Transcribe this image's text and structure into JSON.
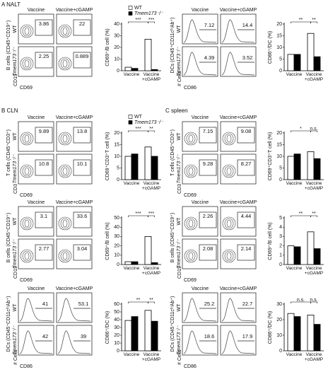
{
  "sections": [
    "A NALT",
    "B CLN",
    "C spleen"
  ],
  "panels": [
    {
      "kind": "contour",
      "columns": [
        "Vaccine",
        "Vaccine+cGAMP"
      ],
      "rows": [
        "WT",
        "Tmem173⁻/⁻"
      ],
      "ylabel": "B cells (CD45⁺CD19⁺)",
      "marker_y": "CD19",
      "marker_x": "CD69",
      "values": [
        3.86,
        22,
        2.25,
        0.889
      ]
    },
    {
      "kind": "histogram",
      "columns": [
        "Vaccine",
        "Vaccine+cGAMP"
      ],
      "rows": [
        "WT",
        "Tmem173⁻/⁻"
      ],
      "ylabel": "DCs (CD45⁺CD11cʰⁱAb⁺)",
      "marker_y": "# Cells",
      "marker_x": "CD86",
      "values": [
        7.12,
        14.4,
        4.39,
        3.52
      ]
    },
    {
      "kind": "contour",
      "columns": [
        "Vaccine",
        "Vaccine+cGAMP"
      ],
      "rows": [
        "WT",
        "Tmem173⁻/⁻"
      ],
      "ylabel": "T cells (CD45⁺CD3⁺)",
      "marker_y": "CD3",
      "marker_x": "CD69",
      "values": [
        9.89,
        13.8,
        10.8,
        10.1
      ]
    },
    {
      "kind": "contour",
      "columns": [
        "Vaccine",
        "Vaccine+cGAMP"
      ],
      "rows": [
        "WT",
        "Tmem173⁻/⁻"
      ],
      "ylabel": "T cells (CD45⁺CD3⁺)",
      "marker_y": "CD3",
      "marker_x": "CD69",
      "values": [
        7.15,
        9.08,
        9.28,
        8.27
      ]
    },
    {
      "kind": "contour",
      "columns": [
        "Vaccine",
        "Vaccine+cGAMP"
      ],
      "rows": [
        "WT",
        "Tmem173⁻/⁻"
      ],
      "ylabel": "B cells (CD45⁺CD19⁺)",
      "marker_y": "CD19",
      "marker_x": "CD69",
      "values": [
        3.1,
        33.6,
        2.77,
        3.04
      ]
    },
    {
      "kind": "contour",
      "columns": [
        "Vaccine",
        "Vaccine+cGAMP"
      ],
      "rows": [
        "WT",
        "Tmem173⁻/⁻"
      ],
      "ylabel": "B cells (CD45⁺CD19⁺)",
      "marker_y": "CD19",
      "marker_x": "CD69",
      "values": [
        2.26,
        4.44,
        2.08,
        2.14
      ]
    },
    {
      "kind": "histogram",
      "columns": [
        "Vaccine",
        "Vaccine+cGAMP"
      ],
      "rows": [
        "WT",
        "Tmem173⁻/⁻"
      ],
      "ylabel": "DCs (CD45⁺CD11cʰⁱAb⁺)",
      "marker_y": "# Cells",
      "marker_x": "CD86",
      "values": [
        41,
        53.1,
        42,
        39
      ]
    },
    {
      "kind": "histogram",
      "columns": [
        "Vaccine",
        "Vaccine+cGAMP"
      ],
      "rows": [
        "WT",
        "Tmem173⁻/⁻"
      ],
      "ylabel": "DCs (CD45⁺CD11cʰⁱAb⁺)",
      "marker_y": "# Cells",
      "marker_x": "CD86",
      "values": [
        25.2,
        22.7,
        18.6,
        17.9
      ]
    }
  ],
  "chart_data": [
    {
      "type": "bar",
      "ylabel": "CD69⁺/B cell (%)",
      "categories": [
        "Vaccine",
        "Vaccine +cGAMP"
      ],
      "ylim": [
        0,
        40
      ],
      "yticks": [
        0,
        10,
        20,
        30,
        40
      ],
      "legend": true,
      "series": [
        {
          "name": "WT",
          "color": "#ffffff",
          "values": [
            3,
            27
          ]
        },
        {
          "name": "Tmem173⁻/⁻",
          "color": "#000000",
          "values": [
            2,
            1
          ]
        }
      ],
      "annotations": [
        "***",
        "***"
      ]
    },
    {
      "type": "bar",
      "ylabel": "CD86⁺/DC (%)",
      "categories": [
        "Vaccine",
        "Vaccine +cGAMP"
      ],
      "ylim": [
        0,
        20
      ],
      "yticks": [
        0,
        5,
        10,
        15,
        20
      ],
      "legend": false,
      "series": [
        {
          "color": "#ffffff",
          "values": [
            7,
            16
          ]
        },
        {
          "color": "#000000",
          "values": [
            7,
            6
          ]
        }
      ],
      "annotations": [
        "**",
        "**"
      ]
    },
    {
      "type": "bar",
      "ylabel": "CD69⁺CD3⁺T cell (%)",
      "categories": [
        "Vaccine",
        "Vaccine +cGAMP"
      ],
      "ylim": [
        0,
        20
      ],
      "yticks": [
        0,
        5,
        10,
        15,
        20
      ],
      "legend": true,
      "series": [
        {
          "name": "WT",
          "color": "#ffffff",
          "values": [
            10,
            14
          ]
        },
        {
          "name": "Tmem173⁻/⁻",
          "color": "#000000",
          "values": [
            11,
            10
          ]
        }
      ],
      "annotations": [
        "***",
        "**"
      ]
    },
    {
      "type": "bar",
      "ylabel": "CD69⁺CD3⁺T cell (%)",
      "categories": [
        "Vaccine",
        "Vaccine +cGAMP"
      ],
      "ylim": [
        0,
        20
      ],
      "yticks": [
        0,
        5,
        10,
        15,
        20
      ],
      "legend": false,
      "series": [
        {
          "color": "#ffffff",
          "values": [
            10,
            12
          ]
        },
        {
          "color": "#000000",
          "values": [
            11,
            9
          ]
        }
      ],
      "annotations": [
        "*",
        "n.s."
      ]
    },
    {
      "type": "bar",
      "ylabel": "CD69⁺/B cell (%)",
      "categories": [
        "Vaccine",
        "Vaccine +cGAMP"
      ],
      "ylim": [
        0,
        50
      ],
      "yticks": [
        0,
        10,
        20,
        30,
        40,
        50
      ],
      "legend": false,
      "series": [
        {
          "color": "#ffffff",
          "values": [
            3,
            30
          ]
        },
        {
          "color": "#000000",
          "values": [
            3,
            2
          ]
        }
      ],
      "annotations": [
        "***",
        "***"
      ]
    },
    {
      "type": "bar",
      "ylabel": "CD69⁺/B cell (%)",
      "categories": [
        "Vaccine",
        "Vaccine +cGAMP"
      ],
      "ylim": [
        0,
        5
      ],
      "yticks": [
        0,
        1,
        2,
        3,
        4,
        5
      ],
      "legend": false,
      "series": [
        {
          "color": "#ffffff",
          "values": [
            2,
            3.5
          ]
        },
        {
          "color": "#000000",
          "values": [
            1.9,
            1.7
          ]
        }
      ],
      "annotations": [
        "**",
        "**"
      ]
    },
    {
      "type": "bar",
      "ylabel": "CD86⁺/DC (%)",
      "categories": [
        "Vaccine",
        "Vaccine +cGAMP"
      ],
      "ylim": [
        0,
        60
      ],
      "yticks": [
        0,
        10,
        20,
        30,
        40,
        50,
        60
      ],
      "legend": false,
      "series": [
        {
          "color": "#ffffff",
          "values": [
            39,
            52
          ]
        },
        {
          "color": "#000000",
          "values": [
            44,
            38
          ]
        }
      ],
      "annotations": [
        "**",
        "**"
      ]
    },
    {
      "type": "bar",
      "ylabel": "CD86⁺/DC (%)",
      "categories": [
        "Vaccine",
        "Vaccine +cGAMP"
      ],
      "ylim": [
        0,
        30
      ],
      "yticks": [
        0,
        10,
        20,
        30
      ],
      "legend": false,
      "series": [
        {
          "color": "#ffffff",
          "values": [
            24,
            23
          ]
        },
        {
          "color": "#000000",
          "values": [
            22,
            17
          ]
        }
      ],
      "annotations": [
        "n.s.",
        "n.s."
      ]
    }
  ]
}
